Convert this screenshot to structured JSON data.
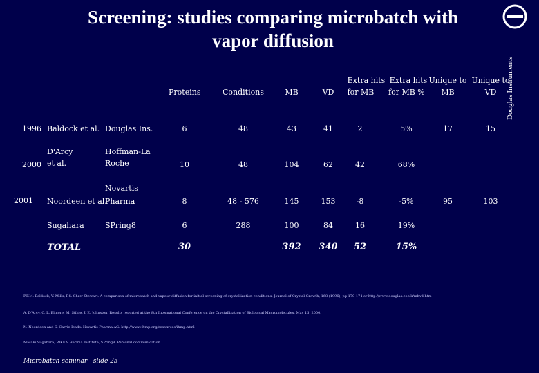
{
  "title_line1": "Screening: studies comparing microbatch with",
  "title_line2": "vapor diffusion",
  "logo_text": "Douglas Instruments",
  "headers": {
    "proteins": "Proteins",
    "conditions": "Conditions",
    "mb": "MB",
    "vd": "VD",
    "extra_mb_1": "Extra hits",
    "extra_mb_2": "for MB",
    "extra_pct_1": "Extra hits",
    "extra_pct_2": "for MB %",
    "unique_mb_1": "Unique to",
    "unique_mb_2": "MB",
    "unique_vd_1": "Unique to",
    "unique_vd_2": "VD"
  },
  "rows": [
    {
      "year": "1996",
      "author": "Baldock et al.",
      "source": "Douglas Ins.",
      "proteins": "6",
      "conditions": "48",
      "mb": "43",
      "vd": "41",
      "extra": "2",
      "pct": "5%",
      "umb": "17",
      "uvd": "15"
    },
    {
      "year": "2000",
      "author_1": "D'Arcy",
      "author_2": "et al.",
      "source_1": "Hoffman-La",
      "source_2": "Roche",
      "proteins": "10",
      "conditions": "48",
      "mb": "104",
      "vd": "62",
      "extra": "42",
      "pct": "68%"
    },
    {
      "year": "2001",
      "author": "Noordeen et al.",
      "source_1": "Novartis",
      "source_2": "Pharma",
      "proteins": "8",
      "conditions": "48 - 576",
      "mb": "145",
      "vd": "153",
      "extra": "-8",
      "pct": "-5%",
      "umb": "95",
      "uvd": "103"
    },
    {
      "author": "Sugahara",
      "source": "SPring8",
      "proteins": "6",
      "conditions": "288",
      "mb": "100",
      "vd": "84",
      "extra": "16",
      "pct": "19%"
    }
  ],
  "total": {
    "label": "TOTAL",
    "proteins": "30",
    "mb": "392",
    "vd": "340",
    "extra": "52",
    "pct": "15%"
  },
  "references": {
    "r1": "P.F.M. Baldock, V. Mills, P.S. Shaw Stewart. A comparison of microbatch and vapour diffusion for initial screening of crystallization conditions. Journal of Crystal Growth, 168 (1996), pp 170-174 or",
    "r1_link": "http://www.douglas.co.uk/mbvd.htm",
    "r2": "A. D'Arcy, C. L. Elmore, M. Stihle, J. E. Johnston. Results reported at the 8th International Conference on the Crystallization of Biological Macromolecules, May 15, 2000.",
    "r3": "N. Noordeen and S. Carrie Ieads. Novartis Pharma AG.",
    "r3_link": "http://www.ihmp.org/resources/ihmp.html",
    "r4": "Masaki Sugahara, RIKEN Harima Institute, SPring8. Personal communication."
  },
  "footer": "Microbatch seminar - slide 25"
}
